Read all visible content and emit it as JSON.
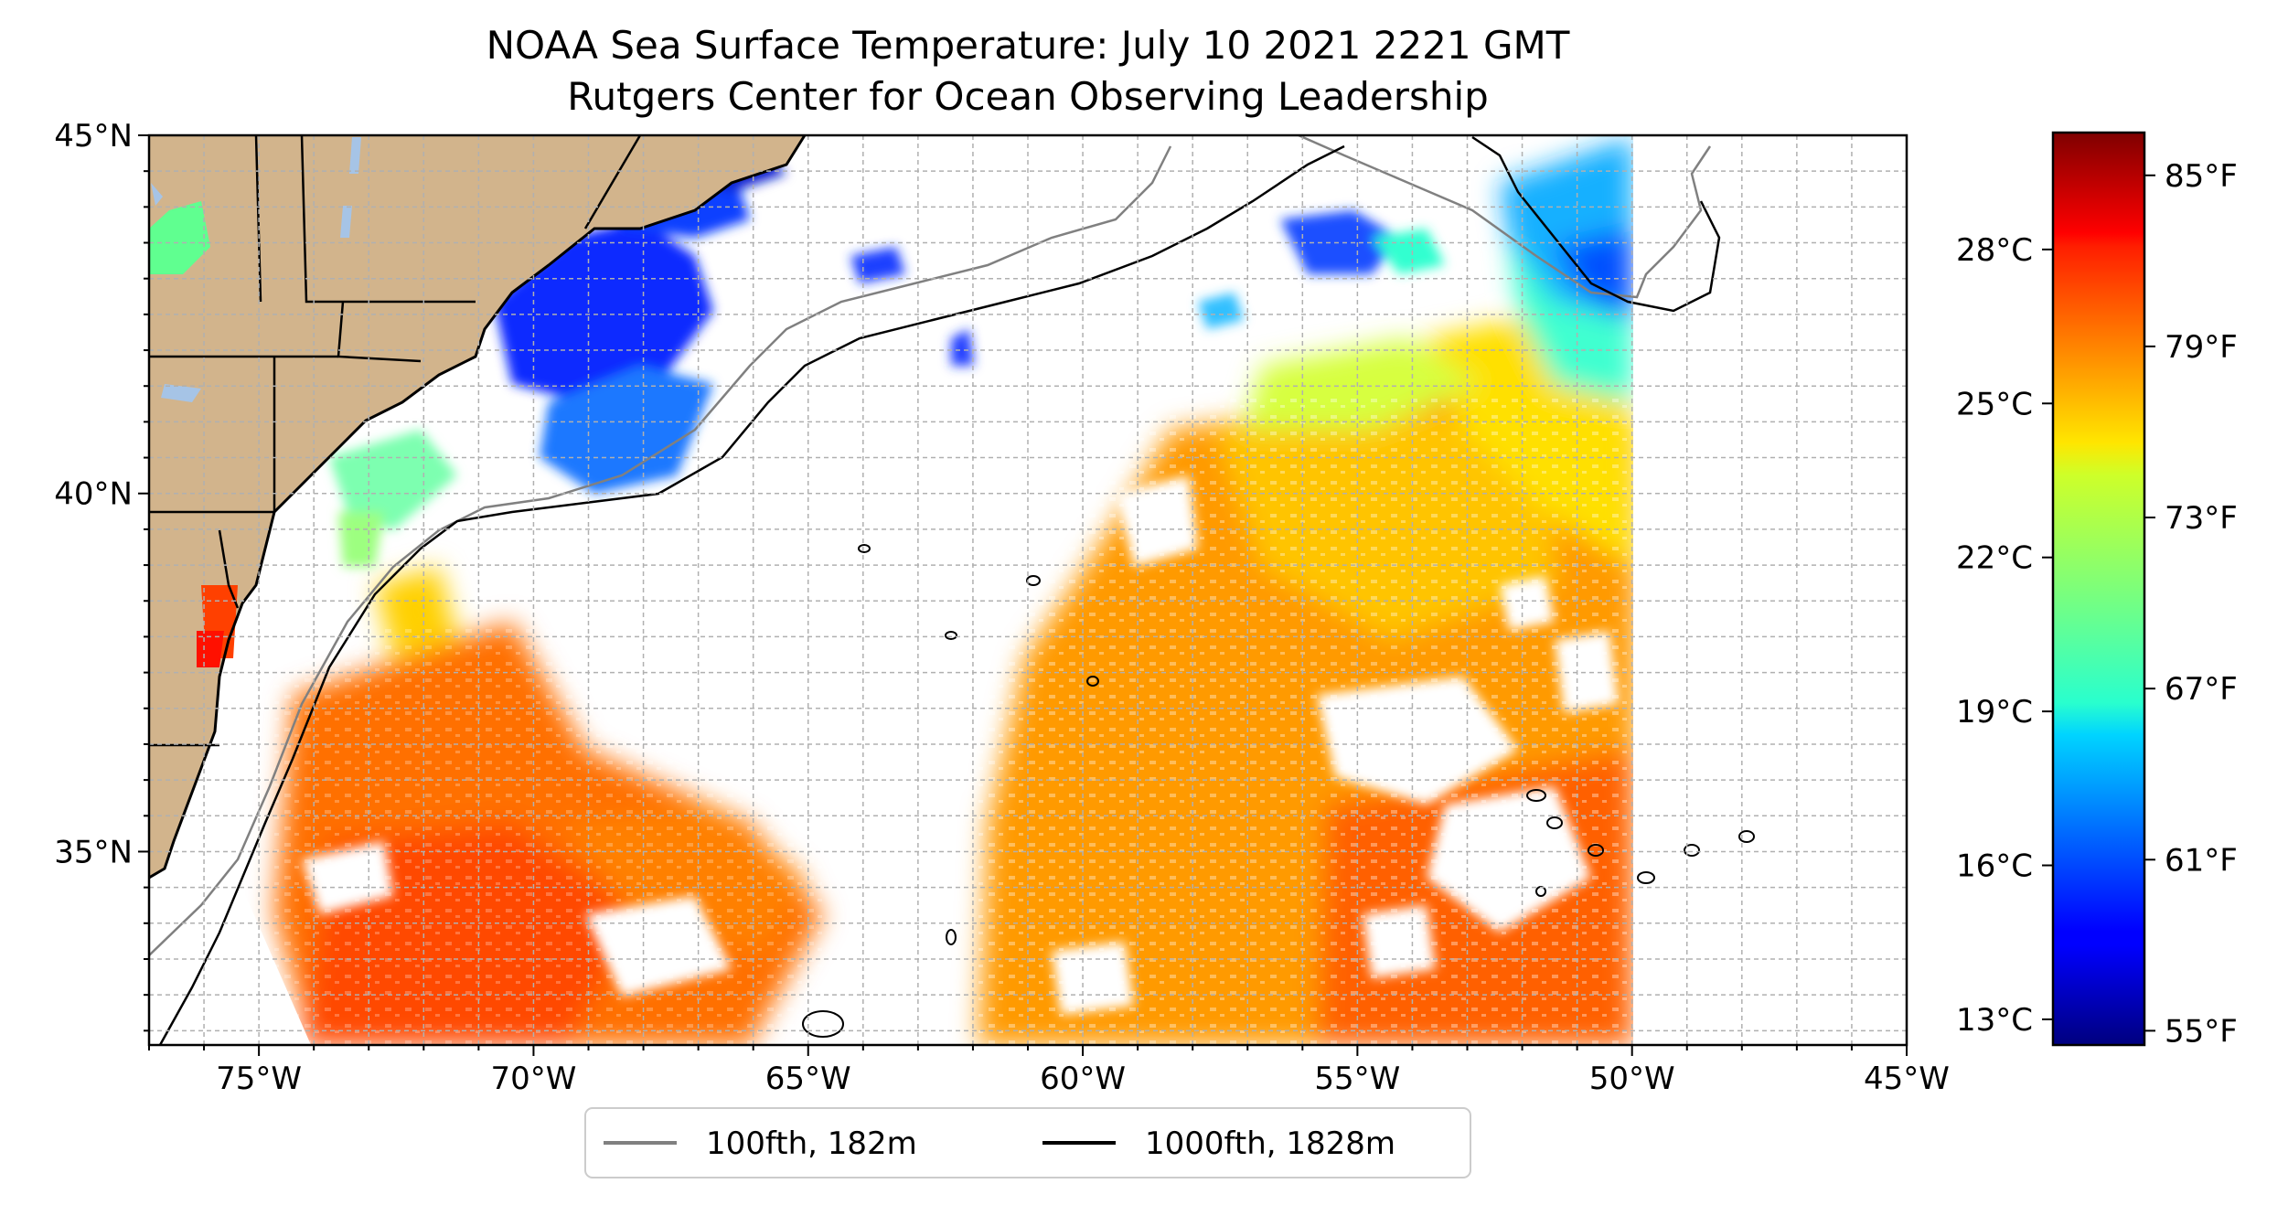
{
  "title": {
    "line1": "NOAA Sea Surface Temperature: July 10 2021 2221 GMT",
    "line2": "Rutgers Center for Ocean Observing Leadership"
  },
  "map": {
    "lon_range": [
      -77,
      -45
    ],
    "lat_range": [
      32.3,
      45
    ],
    "lon_ticks": [
      -75,
      -70,
      -65,
      -60,
      -55,
      -50,
      -45
    ],
    "lon_tick_labels": [
      "75°W",
      "70°W",
      "65°W",
      "60°W",
      "55°W",
      "50°W",
      "45°W"
    ],
    "lat_ticks": [
      35,
      40,
      45
    ],
    "lat_tick_labels": [
      "35°N",
      "40°N",
      "45°N"
    ],
    "grid": true,
    "colors": {
      "land": "#d2b48c",
      "lakes": "#a6c4e6",
      "ocean_nodata": "#ffffff"
    }
  },
  "legend": {
    "position": "below",
    "items": [
      {
        "label": "100fth, 182m",
        "color": "#808080"
      },
      {
        "label": "1000fth, 1828m",
        "color": "#000000"
      }
    ]
  },
  "colorbar": {
    "colormap": "jet",
    "range_f": [
      54.5,
      86.5
    ],
    "celsius_ticks": [
      13,
      16,
      19,
      22,
      25,
      28
    ],
    "celsius_labels": [
      "13°C",
      "16°C",
      "19°C",
      "22°C",
      "25°C",
      "28°C"
    ],
    "fahrenheit_ticks": [
      55,
      61,
      67,
      73,
      79,
      85
    ],
    "fahrenheit_labels": [
      "55°F",
      "61°F",
      "67°F",
      "73°F",
      "79°F",
      "85°F"
    ]
  }
}
